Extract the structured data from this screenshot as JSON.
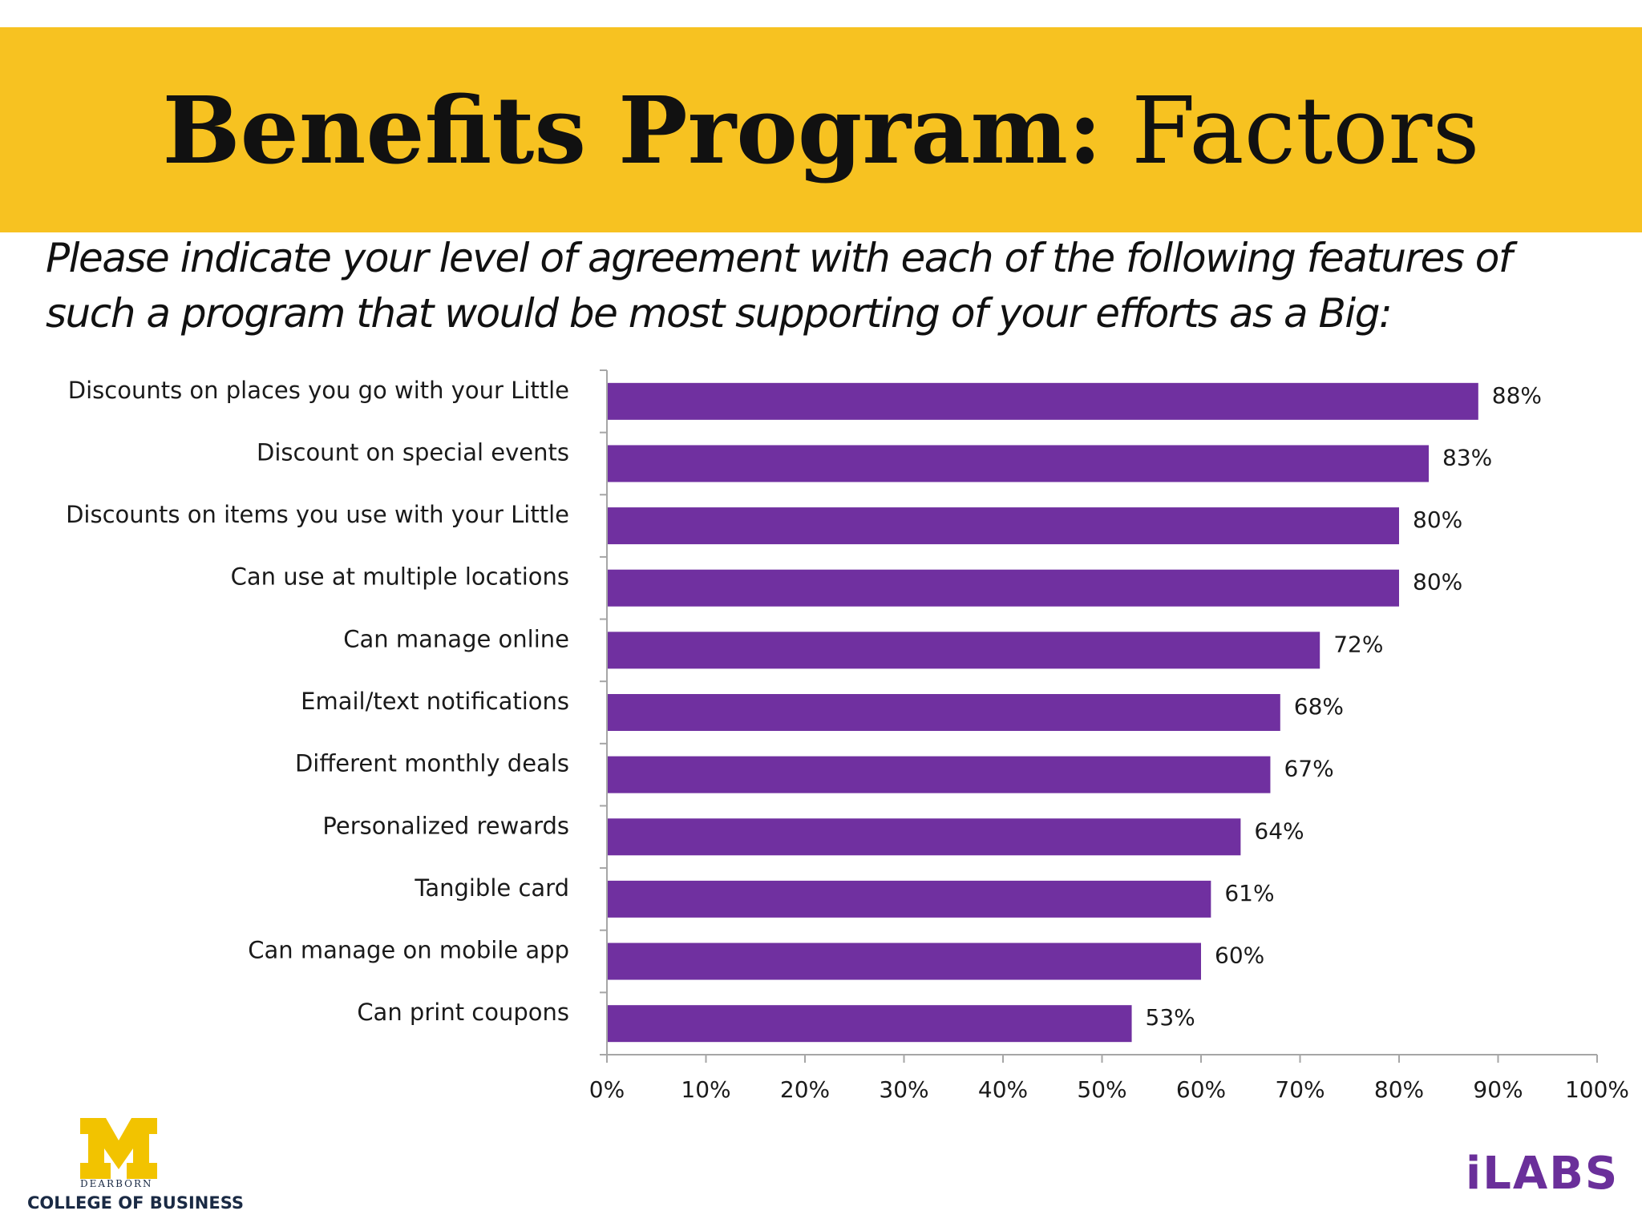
{
  "header": {
    "title_bold": "Benefits Program:",
    "title_rest": " Factors",
    "subtitle": "Please indicate your level of agreement with each of the following features of such a program that would be most supporting of your efforts as a Big:"
  },
  "colors": {
    "banner": "#f7c221",
    "bar": "#7030a0"
  },
  "chart_data": {
    "type": "bar",
    "orientation": "horizontal",
    "categories": [
      "Discounts on places you go with your Little",
      "Discount on special events",
      "Discounts on items you use with your Little",
      "Can use at multiple locations",
      "Can manage online",
      "Email/text notifications",
      "Different monthly deals",
      "Personalized rewards",
      "Tangible card",
      "Can manage on mobile app",
      "Can print coupons"
    ],
    "values": [
      88,
      83,
      80,
      80,
      72,
      68,
      67,
      64,
      61,
      60,
      53
    ],
    "value_labels": [
      "88%",
      "83%",
      "80%",
      "80%",
      "72%",
      "68%",
      "67%",
      "64%",
      "61%",
      "60%",
      "53%"
    ],
    "xlim": [
      0,
      100
    ],
    "xticks": [
      "0%",
      "10%",
      "20%",
      "30%",
      "40%",
      "50%",
      "60%",
      "70%",
      "80%",
      "90%",
      "100%"
    ],
    "grid": false,
    "legend": "none"
  },
  "logos": {
    "left_mark": "M",
    "left_small": "DEARBORN",
    "left_name": "COLLEGE OF BUSINESS",
    "right_name": "iLABS"
  }
}
